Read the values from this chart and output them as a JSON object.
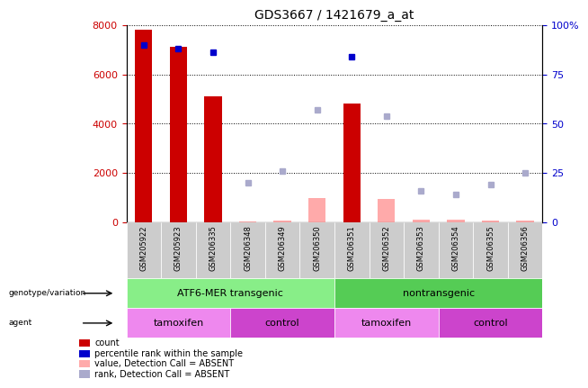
{
  "title": "GDS3667 / 1421679_a_at",
  "samples": [
    "GSM205922",
    "GSM205923",
    "GSM206335",
    "GSM206348",
    "GSM206349",
    "GSM206350",
    "GSM206351",
    "GSM206352",
    "GSM206353",
    "GSM206354",
    "GSM206355",
    "GSM206356"
  ],
  "count_present": [
    7800,
    7100,
    5100,
    null,
    null,
    null,
    4800,
    null,
    null,
    null,
    null,
    null
  ],
  "count_absent": [
    null,
    null,
    null,
    50,
    80,
    1000,
    null,
    950,
    100,
    100,
    80,
    80
  ],
  "rank_present": [
    90,
    88,
    86,
    null,
    null,
    null,
    84,
    null,
    null,
    null,
    null,
    null
  ],
  "rank_absent": [
    null,
    null,
    null,
    20,
    26,
    57,
    null,
    54,
    16,
    14,
    19,
    25
  ],
  "left_ylim": [
    0,
    8000
  ],
  "right_ylim": [
    0,
    100
  ],
  "left_yticks": [
    0,
    2000,
    4000,
    6000,
    8000
  ],
  "right_yticks": [
    0,
    25,
    50,
    75,
    100
  ],
  "red_color": "#cc0000",
  "pink_color": "#ffaaaa",
  "blue_color": "#0000cc",
  "lightblue_color": "#aaaacc",
  "genotype_groups": [
    {
      "label": "ATF6-MER transgenic",
      "start": 0,
      "end": 5,
      "color": "#88ee88"
    },
    {
      "label": "nontransgenic",
      "start": 6,
      "end": 11,
      "color": "#55cc55"
    }
  ],
  "agent_groups": [
    {
      "label": "tamoxifen",
      "start": 0,
      "end": 2,
      "color": "#ee88ee"
    },
    {
      "label": "control",
      "start": 3,
      "end": 5,
      "color": "#cc44cc"
    },
    {
      "label": "tamoxifen",
      "start": 6,
      "end": 8,
      "color": "#ee88ee"
    },
    {
      "label": "control",
      "start": 9,
      "end": 11,
      "color": "#cc44cc"
    }
  ],
  "legend_items": [
    {
      "label": "count",
      "color": "#cc0000"
    },
    {
      "label": "percentile rank within the sample",
      "color": "#0000cc"
    },
    {
      "label": "value, Detection Call = ABSENT",
      "color": "#ffaaaa"
    },
    {
      "label": "rank, Detection Call = ABSENT",
      "color": "#aaaacc"
    }
  ],
  "gray_color": "#cccccc",
  "bar_width": 0.5
}
